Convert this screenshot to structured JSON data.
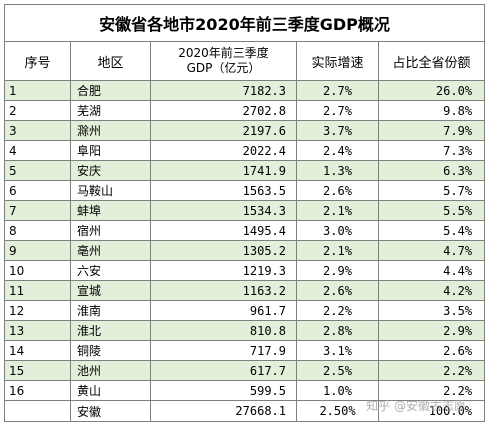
{
  "title": "安徽省各地市2020年前三季度GDP概况",
  "headers": {
    "no": "序号",
    "city": "地区",
    "gdp_line1": "2020年前三季度",
    "gdp_line2": "GDP（亿元）",
    "growth": "实际增速",
    "share": "占比全省份额"
  },
  "rows": [
    {
      "no": "1",
      "city": "合肥",
      "gdp": "7182.3",
      "growth": "2.7%",
      "share": "26.0%"
    },
    {
      "no": "2",
      "city": "芜湖",
      "gdp": "2702.8",
      "growth": "2.7%",
      "share": "9.8%"
    },
    {
      "no": "3",
      "city": "滁州",
      "gdp": "2197.6",
      "growth": "3.7%",
      "share": "7.9%"
    },
    {
      "no": "4",
      "city": "阜阳",
      "gdp": "2022.4",
      "growth": "2.4%",
      "share": "7.3%"
    },
    {
      "no": "5",
      "city": "安庆",
      "gdp": "1741.9",
      "growth": "1.3%",
      "share": "6.3%"
    },
    {
      "no": "6",
      "city": "马鞍山",
      "gdp": "1563.5",
      "growth": "2.6%",
      "share": "5.7%"
    },
    {
      "no": "7",
      "city": "蚌埠",
      "gdp": "1534.3",
      "growth": "2.1%",
      "share": "5.5%"
    },
    {
      "no": "8",
      "city": "宿州",
      "gdp": "1495.4",
      "growth": "3.0%",
      "share": "5.4%"
    },
    {
      "no": "9",
      "city": "亳州",
      "gdp": "1305.2",
      "growth": "2.1%",
      "share": "4.7%"
    },
    {
      "no": "10",
      "city": "六安",
      "gdp": "1219.3",
      "growth": "2.9%",
      "share": "4.4%"
    },
    {
      "no": "11",
      "city": "宣城",
      "gdp": "1163.2",
      "growth": "2.6%",
      "share": "4.2%"
    },
    {
      "no": "12",
      "city": "淮南",
      "gdp": "961.7",
      "growth": "2.2%",
      "share": "3.5%"
    },
    {
      "no": "13",
      "city": "淮北",
      "gdp": "810.8",
      "growth": "2.8%",
      "share": "2.9%"
    },
    {
      "no": "14",
      "city": "铜陵",
      "gdp": "717.9",
      "growth": "3.1%",
      "share": "2.6%"
    },
    {
      "no": "15",
      "city": "池州",
      "gdp": "617.7",
      "growth": "2.5%",
      "share": "2.2%"
    },
    {
      "no": "16",
      "city": "黄山",
      "gdp": "599.5",
      "growth": "1.0%",
      "share": "2.2%"
    }
  ],
  "total": {
    "no": "",
    "city": "安徽",
    "gdp": "27668.1",
    "growth": "2.50%",
    "share": "100.0%"
  },
  "watermark": "知乎 @安徽古志愿"
}
